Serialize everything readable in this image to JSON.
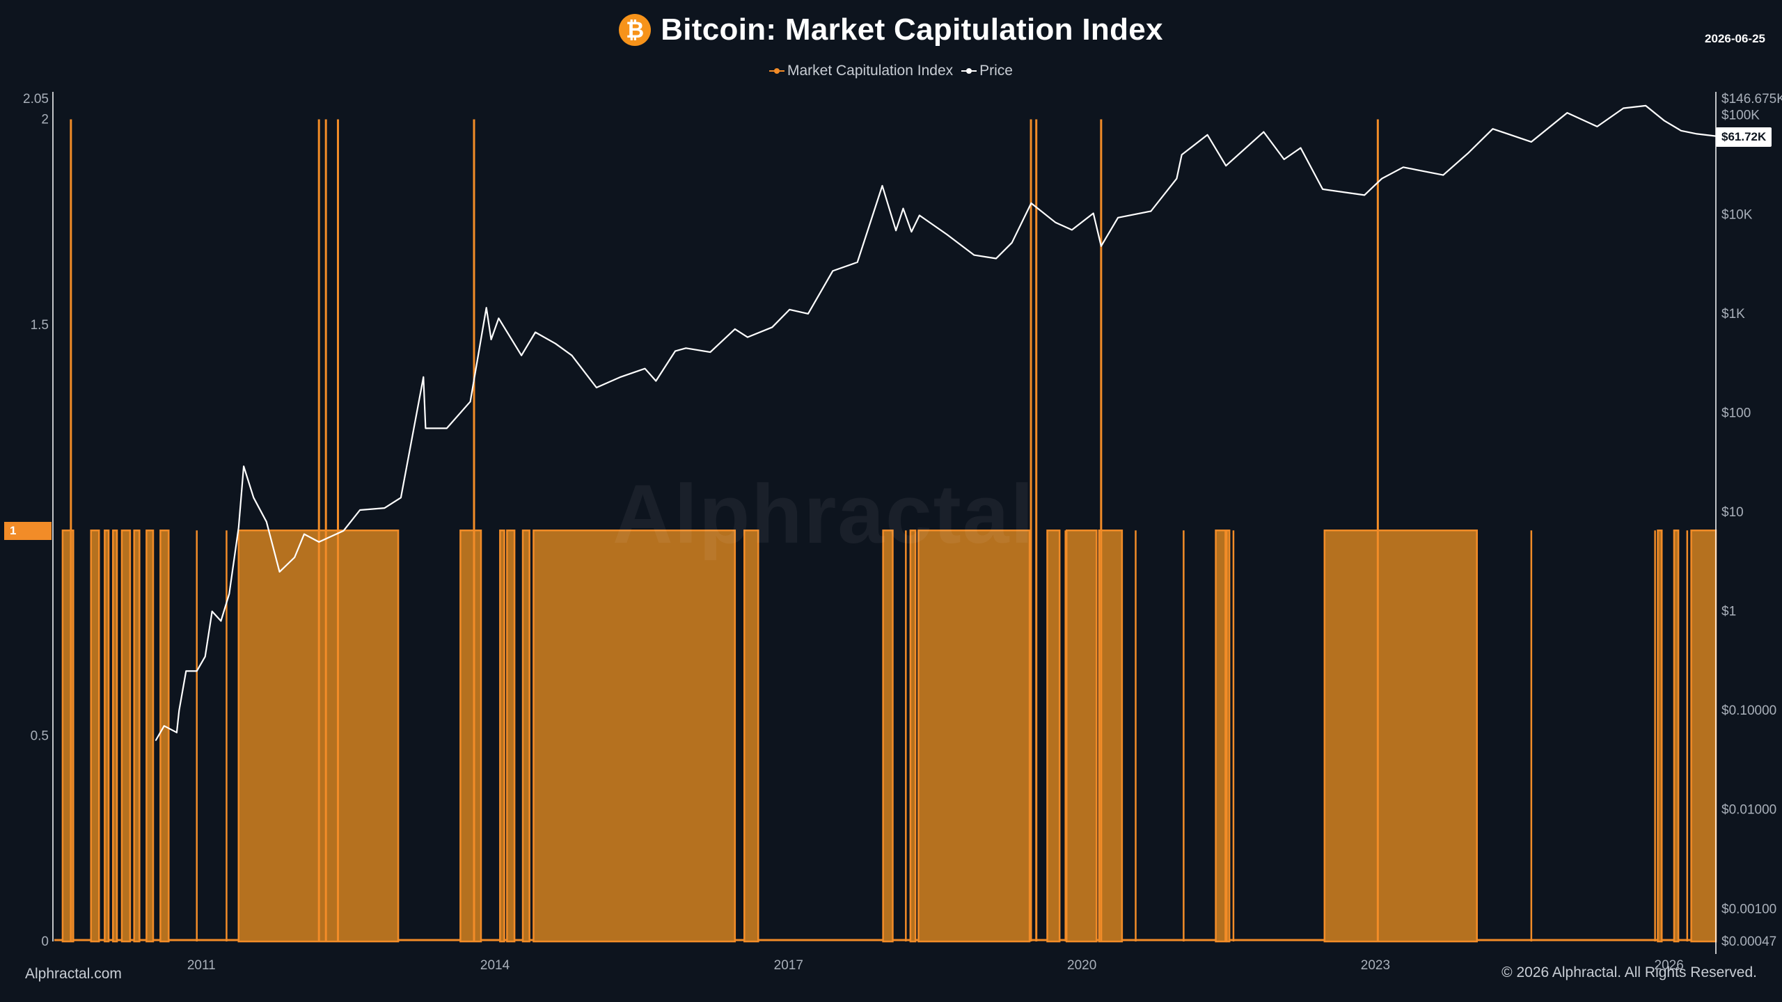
{
  "header": {
    "title": "Bitcoin: Market Capitulation Index",
    "logo_symbol": "₿",
    "date": "2026-06-25"
  },
  "legend": [
    {
      "label": "Market Capitulation Index",
      "color": "#f28c28"
    },
    {
      "label": "Price",
      "color": "#ffffff"
    }
  ],
  "footer": {
    "left": "Alphractal.com",
    "right": "© 2026 Alphractal. All Rights Reserved."
  },
  "watermark": "Alphractal",
  "price_tag": "$61.72K",
  "index_tag": "1",
  "colors": {
    "background": "#0d141e",
    "index": "#f28c28",
    "index_fill": "#b5711f",
    "price": "#ffffff",
    "axis": "#a9b0ba"
  },
  "chart_data": {
    "type": "area",
    "title": "Bitcoin: Market Capitulation Index",
    "x_ticks": [
      "2011",
      "2014",
      "2017",
      "2020",
      "2023",
      "2026"
    ],
    "x_range": [
      "2009-07-01",
      "2026-06-25"
    ],
    "left_axis": {
      "ticks": [
        "0",
        "0.5",
        "1.5",
        "2",
        "2.05"
      ],
      "ylim": [
        0,
        2.05
      ]
    },
    "right_axis": {
      "scale": "log",
      "ticks": [
        "$0.00047",
        "$0.00100",
        "$0.01000",
        "$0.10000",
        "$1",
        "$10",
        "$100",
        "$1K",
        "$10K",
        "$100K",
        "$146.675K"
      ]
    },
    "series": [
      {
        "name": "Market Capitulation Index",
        "kind": "step",
        "value_levels": [
          0,
          1,
          2
        ],
        "periods_at_1": [
          [
            "2009-08-01",
            "2009-09-10"
          ],
          [
            "2009-11-15",
            "2009-12-15"
          ],
          [
            "2010-01-05",
            "2010-01-20"
          ],
          [
            "2010-02-05",
            "2010-02-20"
          ],
          [
            "2010-03-10",
            "2010-04-10"
          ],
          [
            "2010-04-25",
            "2010-05-15"
          ],
          [
            "2010-06-10",
            "2010-07-05"
          ],
          [
            "2010-08-01",
            "2010-09-01"
          ],
          [
            "2011-05-20",
            "2013-01-05"
          ],
          [
            "2013-08-25",
            "2013-11-10"
          ],
          [
            "2014-01-20",
            "2014-02-05"
          ],
          [
            "2014-02-15",
            "2014-03-15"
          ],
          [
            "2014-04-15",
            "2014-05-10"
          ],
          [
            "2014-05-25",
            "2016-06-15"
          ],
          [
            "2016-07-20",
            "2016-09-10"
          ],
          [
            "2017-12-20",
            "2018-01-25"
          ],
          [
            "2018-04-01",
            "2018-04-20"
          ],
          [
            "2018-05-01",
            "2019-06-20"
          ],
          [
            "2019-08-25",
            "2019-10-10"
          ],
          [
            "2019-11-05",
            "2020-02-25"
          ],
          [
            "2020-03-05",
            "2020-05-30"
          ],
          [
            "2021-05-15",
            "2021-06-20"
          ],
          [
            "2021-06-25",
            "2021-07-05"
          ],
          [
            "2022-06-25",
            "2024-01-15"
          ],
          [
            "2025-11-20",
            "2025-12-05"
          ],
          [
            "2026-01-20",
            "2026-02-05"
          ],
          [
            "2026-03-25",
            "2026-06-25"
          ]
        ],
        "spikes_at_2": [
          "2009-09-01",
          "2012-03-15",
          "2012-04-10",
          "2012-05-25",
          "2013-10-15",
          "2019-06-25",
          "2019-07-15",
          "2020-03-13",
          "2023-01-10"
        ],
        "spikes_at_1": [
          "2010-12-15",
          "2011-04-05",
          "2018-03-15",
          "2019-11-01",
          "2020-07-20",
          "2021-01-15",
          "2021-07-20",
          "2024-08-05",
          "2025-11-10",
          "2026-03-10"
        ]
      },
      {
        "name": "Price",
        "kind": "line",
        "points": [
          [
            "2010-07-15",
            0.05
          ],
          [
            "2010-08-15",
            0.07
          ],
          [
            "2010-10-01",
            0.06
          ],
          [
            "2010-10-10",
            0.1
          ],
          [
            "2010-11-05",
            0.25
          ],
          [
            "2010-12-15",
            0.25
          ],
          [
            "2011-01-15",
            0.35
          ],
          [
            "2011-02-10",
            1.0
          ],
          [
            "2011-03-15",
            0.8
          ],
          [
            "2011-04-15",
            1.5
          ],
          [
            "2011-05-20",
            7.0
          ],
          [
            "2011-06-08",
            29.0
          ],
          [
            "2011-07-15",
            14.0
          ],
          [
            "2011-09-01",
            8.0
          ],
          [
            "2011-10-20",
            2.5
          ],
          [
            "2011-12-15",
            3.5
          ],
          [
            "2012-01-20",
            6.0
          ],
          [
            "2012-03-15",
            5.0
          ],
          [
            "2012-06-15",
            6.5
          ],
          [
            "2012-08-15",
            10.5
          ],
          [
            "2012-11-15",
            11.0
          ],
          [
            "2013-01-15",
            14.0
          ],
          [
            "2013-04-09",
            230
          ],
          [
            "2013-04-17",
            70
          ],
          [
            "2013-07-05",
            70
          ],
          [
            "2013-10-01",
            130
          ],
          [
            "2013-11-30",
            1150
          ],
          [
            "2013-12-18",
            550
          ],
          [
            "2014-01-15",
            900
          ],
          [
            "2014-04-10",
            380
          ],
          [
            "2014-06-01",
            650
          ],
          [
            "2014-08-15",
            500
          ],
          [
            "2014-10-15",
            380
          ],
          [
            "2015-01-15",
            180
          ],
          [
            "2015-04-15",
            230
          ],
          [
            "2015-07-15",
            280
          ],
          [
            "2015-08-25",
            210
          ],
          [
            "2015-11-05",
            420
          ],
          [
            "2015-12-15",
            450
          ],
          [
            "2016-03-15",
            410
          ],
          [
            "2016-06-15",
            700
          ],
          [
            "2016-08-01",
            580
          ],
          [
            "2016-11-01",
            730
          ],
          [
            "2017-01-05",
            1100
          ],
          [
            "2017-03-15",
            1000
          ],
          [
            "2017-06-15",
            2700
          ],
          [
            "2017-09-15",
            3300
          ],
          [
            "2017-12-17",
            19500
          ],
          [
            "2018-02-06",
            6900
          ],
          [
            "2018-03-05",
            11500
          ],
          [
            "2018-04-05",
            6700
          ],
          [
            "2018-05-05",
            9800
          ],
          [
            "2018-08-15",
            6300
          ],
          [
            "2018-11-25",
            3900
          ],
          [
            "2019-02-15",
            3600
          ],
          [
            "2019-04-15",
            5200
          ],
          [
            "2019-06-26",
            13000
          ],
          [
            "2019-09-25",
            8300
          ],
          [
            "2019-11-25",
            7000
          ],
          [
            "2020-02-13",
            10300
          ],
          [
            "2020-03-13",
            4800
          ],
          [
            "2020-05-15",
            9300
          ],
          [
            "2020-09-15",
            10800
          ],
          [
            "2020-12-20",
            23000
          ],
          [
            "2021-01-08",
            40000
          ],
          [
            "2021-04-14",
            63500
          ],
          [
            "2021-06-22",
            31000
          ],
          [
            "2021-11-10",
            68000
          ],
          [
            "2022-01-25",
            36000
          ],
          [
            "2022-03-28",
            47000
          ],
          [
            "2022-06-18",
            18000
          ],
          [
            "2022-11-21",
            15700
          ],
          [
            "2023-01-25",
            23000
          ],
          [
            "2023-04-15",
            30000
          ],
          [
            "2023-09-11",
            25000
          ],
          [
            "2023-12-15",
            42000
          ],
          [
            "2024-03-14",
            73000
          ],
          [
            "2024-08-05",
            54000
          ],
          [
            "2024-12-17",
            106000
          ],
          [
            "2025-04-08",
            77000
          ],
          [
            "2025-07-15",
            118000
          ],
          [
            "2025-10-06",
            125000
          ],
          [
            "2025-12-15",
            88000
          ],
          [
            "2026-02-15",
            70000
          ],
          [
            "2026-04-15",
            65000
          ],
          [
            "2026-06-25",
            61720
          ]
        ]
      }
    ]
  }
}
